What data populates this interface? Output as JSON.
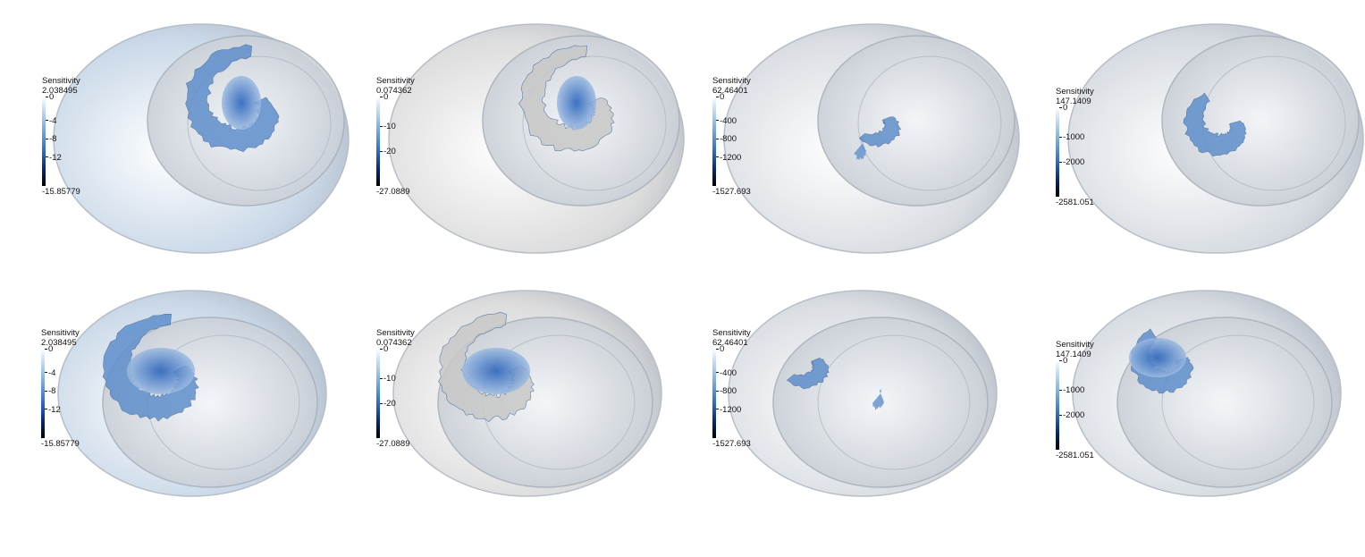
{
  "panels": [
    {
      "legend": {
        "title": "Sensitivity",
        "max": "2.038495",
        "min": "-15.85779",
        "ticks": [
          "0",
          "-4",
          "-8",
          "-12"
        ]
      },
      "shell_color": "#c9d8e8",
      "view": "top"
    },
    {
      "legend": {
        "title": "Sensitivity",
        "max": "0.074362",
        "min": "-27.0889",
        "ticks": [
          "0",
          "-10",
          "-20"
        ]
      },
      "shell_color": "#dcdcdc",
      "view": "top"
    },
    {
      "legend": {
        "title": "Sensitivity",
        "max": "62.46401",
        "min": "-1527.693",
        "ticks": [
          "0",
          "-400",
          "-800",
          "-1200"
        ]
      },
      "shell_color": "#d9dde2",
      "view": "top"
    },
    {
      "legend": {
        "title": "Sensitivity",
        "max": "147.1409",
        "min": "-2581.051",
        "ticks": [
          "0",
          "-1000",
          "-2000"
        ]
      },
      "shell_color": "#d6dbe1",
      "view": "top"
    },
    {
      "legend": {
        "title": "Sensitivity",
        "max": "2.038495",
        "min": "-15.85779",
        "ticks": [
          "0",
          "-4",
          "-8",
          "-12"
        ]
      },
      "shell_color": "#c9d8e8",
      "view": "front"
    },
    {
      "legend": {
        "title": "Sensitivity",
        "max": "0.074362",
        "min": "-27.0889",
        "ticks": [
          "0",
          "-10",
          "-20"
        ]
      },
      "shell_color": "#dcdcdc",
      "view": "front"
    },
    {
      "legend": {
        "title": "Sensitivity",
        "max": "62.46401",
        "min": "-1527.693",
        "ticks": [
          "0",
          "-400",
          "-800",
          "-1200"
        ]
      },
      "shell_color": "#d9dde2",
      "view": "front"
    },
    {
      "legend": {
        "title": "Sensitivity",
        "max": "147.1409",
        "min": "-2581.051",
        "ticks": [
          "0",
          "-1000",
          "-2000"
        ]
      },
      "shell_color": "#d6dbe1",
      "view": "front"
    }
  ],
  "colors": {
    "blue_dark": "#1f5cb8",
    "blue_mid": "#5f8fcc",
    "blue_light": "#a9c4e4",
    "grey_surface": "#c8c8c8"
  }
}
